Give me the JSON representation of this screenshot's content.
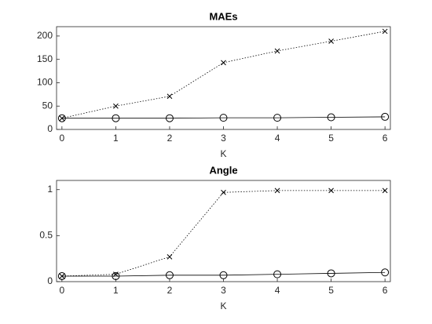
{
  "chart_data": [
    {
      "type": "line",
      "title": "MAEs",
      "xlabel": "K",
      "x": [
        0,
        1,
        2,
        3,
        4,
        5,
        6
      ],
      "series": [
        {
          "color": "#000000",
          "marker": "x",
          "linestyle": "dotted",
          "values": [
            24,
            50,
            71,
            143,
            168,
            189,
            210
          ]
        },
        {
          "color": "#000000",
          "marker": "o",
          "linestyle": "solid",
          "values": [
            24,
            24,
            24,
            25,
            25,
            26,
            27
          ]
        }
      ],
      "xlim": [
        -0.1,
        6.1
      ],
      "xticks": [
        0,
        1,
        2,
        3,
        4,
        5,
        6
      ],
      "ylim": [
        0,
        220
      ],
      "yticks": [
        0,
        50,
        100,
        150,
        200
      ]
    },
    {
      "type": "line",
      "title": "Angle",
      "xlabel": "K",
      "x": [
        0,
        1,
        2,
        3,
        4,
        5,
        6
      ],
      "series": [
        {
          "color": "#000000",
          "marker": "x",
          "linestyle": "dotted",
          "values": [
            0.06,
            0.08,
            0.27,
            0.97,
            0.99,
            0.99,
            0.99
          ]
        },
        {
          "color": "#000000",
          "marker": "o",
          "linestyle": "solid",
          "values": [
            0.06,
            0.06,
            0.07,
            0.07,
            0.08,
            0.09,
            0.1
          ]
        }
      ],
      "xlim": [
        -0.1,
        6.1
      ],
      "xticks": [
        0,
        1,
        2,
        3,
        4,
        5,
        6
      ],
      "ylim": [
        0,
        1.1
      ],
      "yticks": [
        0,
        0.5,
        1
      ]
    }
  ]
}
